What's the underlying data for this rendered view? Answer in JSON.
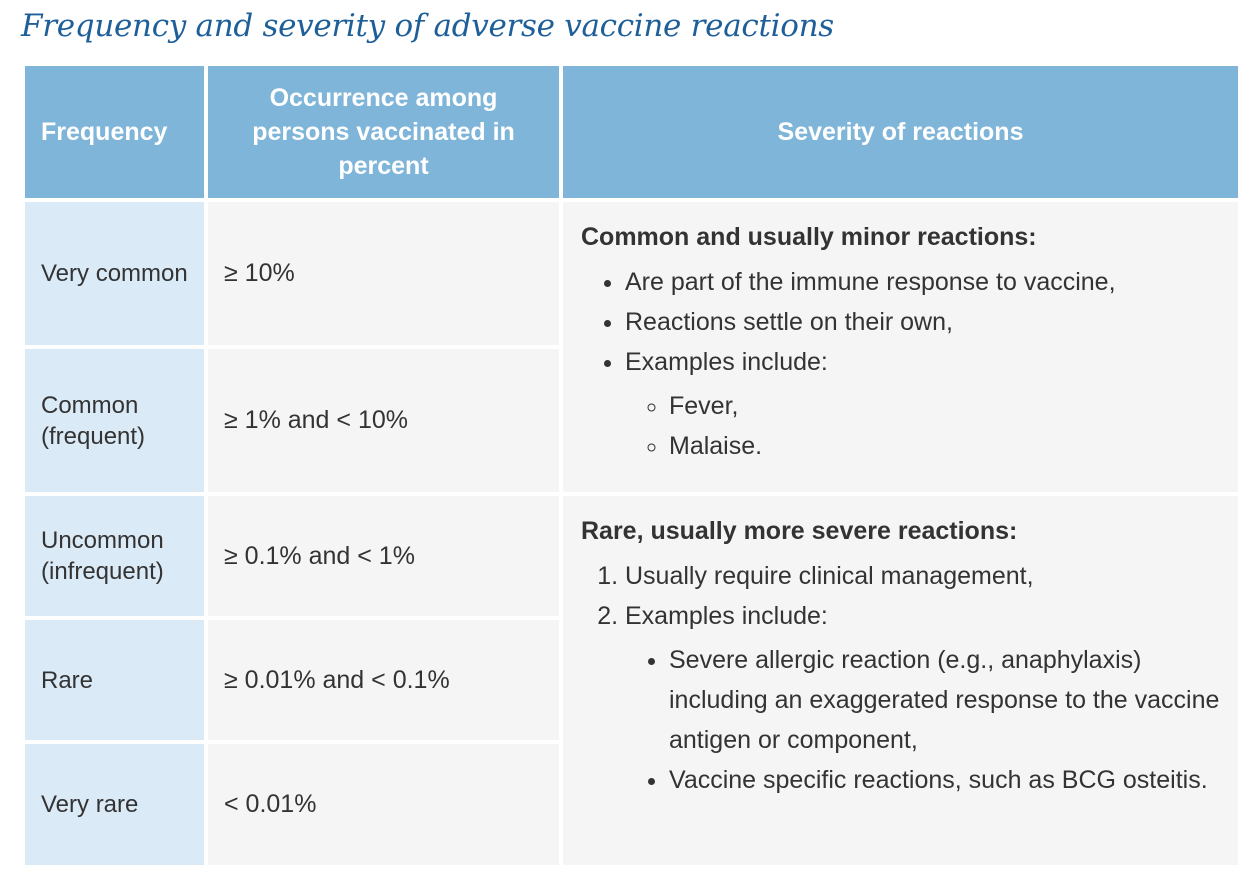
{
  "title": "Frequency and severity of adverse vaccine reactions",
  "table": {
    "headers": {
      "frequency": "Frequency",
      "occurrence": "Occurrence among persons vaccinated in percent",
      "severity": "Severity of reactions"
    },
    "rows": [
      {
        "frequency": "Very common",
        "occurrence": "≥ 10%"
      },
      {
        "frequency": "Common (frequent)",
        "occurrence": "≥ 1% and < 10%"
      },
      {
        "frequency": "Uncommon (infrequent)",
        "occurrence": "≥ 0.1% and < 1%"
      },
      {
        "frequency": "Rare",
        "occurrence": "≥ 0.01% and < 0.1%"
      },
      {
        "frequency": "Very rare",
        "occurrence": "< 0.01%"
      }
    ],
    "severity": {
      "minor": {
        "heading": "Common and usually minor reactions:",
        "items": [
          "Are part of the immune response to vaccine,",
          "Reactions settle on their own,",
          "Examples include:"
        ],
        "examples": [
          "Fever,",
          "Malaise."
        ]
      },
      "severe": {
        "heading": "Rare, usually more severe reactions:",
        "items": [
          "Usually require clinical management,",
          "Examples include:"
        ],
        "examples": [
          "Severe allergic reaction (e.g., anaphylaxis) including an exaggerated response to the vaccine antigen or component,",
          "Vaccine specific reactions, such as BCG osteitis."
        ]
      }
    }
  },
  "colors": {
    "title": "#1f5f99",
    "header_bg": "#7fb5d9",
    "frequency_bg": "#dbeaf7",
    "cell_bg": "#f5f5f5"
  }
}
